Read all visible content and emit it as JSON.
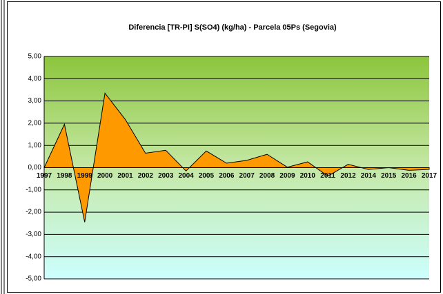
{
  "chart_data": {
    "type": "area",
    "title": "Diferencia [TR-PI] S(SO4) (kg/ha) - Parcela 05Ps (Segovia)",
    "categories": [
      "1997",
      "1998",
      "1999",
      "2000",
      "2001",
      "2002",
      "2003",
      "2004",
      "2005",
      "2006",
      "2007",
      "2008",
      "2009",
      "2010",
      "2011",
      "2012",
      "2014",
      "2015",
      "2016",
      "2017"
    ],
    "values": [
      0.0,
      1.95,
      -2.45,
      3.35,
      2.17,
      0.65,
      0.78,
      -0.15,
      0.75,
      0.2,
      0.33,
      0.6,
      0.02,
      0.26,
      -0.38,
      0.15,
      -0.08,
      0.0,
      -0.12,
      -0.08
    ],
    "color": "#ff9900",
    "ylim": [
      -5,
      5
    ],
    "yticks": [
      {
        "value": -5,
        "label": "-5,00"
      },
      {
        "value": -4,
        "label": "-4,00"
      },
      {
        "value": -3,
        "label": "-3,00"
      },
      {
        "value": -2,
        "label": "-2,00"
      },
      {
        "value": -1,
        "label": "-1,00"
      },
      {
        "value": 0,
        "label": "0,00"
      },
      {
        "value": 1,
        "label": "1,00"
      },
      {
        "value": 2,
        "label": "2,00"
      },
      {
        "value": 3,
        "label": "3,00"
      },
      {
        "value": 4,
        "label": "4,00"
      },
      {
        "value": 5,
        "label": "5,00"
      }
    ],
    "grid": true
  }
}
